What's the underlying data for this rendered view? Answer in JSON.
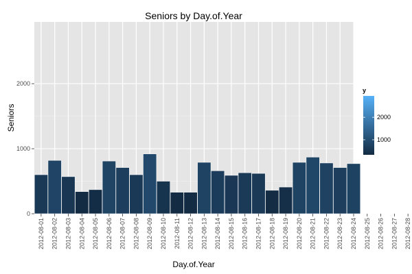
{
  "chart_data": {
    "type": "bar",
    "title": "Seniors by Day.of.Year",
    "xlabel": "Day.of.Year",
    "ylabel": "Seniors",
    "categories": [
      "2012-08-01",
      "2012-08-02",
      "2012-08-03",
      "2012-08-04",
      "2012-08-05",
      "2012-08-06",
      "2012-08-07",
      "2012-08-08",
      "2012-08-09",
      "2012-08-10",
      "2012-08-11",
      "2012-08-12",
      "2012-08-13",
      "2012-08-14",
      "2012-08-15",
      "2012-08-16",
      "2012-08-17",
      "2012-08-18",
      "2012-08-19",
      "2012-08-20",
      "2012-08-21",
      "2012-08-22",
      "2012-08-23",
      "2012-08-24",
      "2012-08-25",
      "2012-08-26",
      "2012-08-27",
      "2012-08-28"
    ],
    "values": [
      600,
      820,
      570,
      340,
      370,
      810,
      710,
      600,
      920,
      500,
      330,
      330,
      790,
      660,
      590,
      630,
      620,
      360,
      410,
      790,
      870,
      780,
      710,
      770,
      null,
      null,
      null,
      null
    ],
    "ylim": [
      0,
      2950
    ],
    "yticks": [
      0,
      1000,
      2000
    ],
    "ytick_labels": [
      "0",
      "1000",
      "2000"
    ],
    "grid": true,
    "legend": {
      "title": "y",
      "placement": "right",
      "type": "colorbar",
      "range": [
        330,
        2950
      ],
      "ticks": [
        1000,
        2000
      ],
      "tick_labels": [
        "1000",
        "2000"
      ],
      "low_color": "#132B43",
      "high_color": "#56B1F7"
    },
    "colors": {
      "panel": "#E5E5E5",
      "grid_major": "#FFFFFF",
      "grid_minor": "#F2F2F2",
      "bar_outline": "#FFFFFF"
    }
  }
}
